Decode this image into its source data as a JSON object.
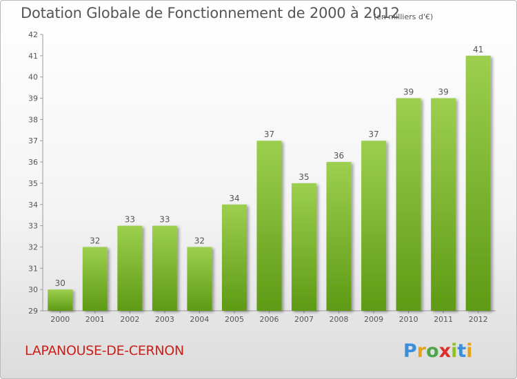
{
  "title": "Dotation Globale de Fonctionnement de 2000 à 2012",
  "unit": "(en milliers d'€)",
  "commune": "LAPANOUSE-DE-CERNON",
  "logo_text": "Proxiti",
  "colors": {
    "bar_top": "#9ccf4e",
    "bar_bottom": "#5e9a15",
    "commune": "#c9201a",
    "text": "#555555"
  },
  "chart_data": {
    "type": "bar",
    "title": "Dotation Globale de Fonctionnement de 2000 à 2012",
    "xlabel": "",
    "ylabel": "",
    "categories": [
      "2000",
      "2001",
      "2002",
      "2003",
      "2004",
      "2005",
      "2006",
      "2007",
      "2008",
      "2009",
      "2010",
      "2011",
      "2012"
    ],
    "values": [
      30,
      32,
      33,
      33,
      32,
      34,
      37,
      35,
      36,
      37,
      39,
      39,
      41
    ],
    "data_labels": [
      "30",
      "32",
      "33",
      "33",
      "32",
      "34",
      "37",
      "35",
      "36",
      "37",
      "39",
      "39",
      "41"
    ],
    "ylim": [
      29,
      42
    ],
    "yticks": [
      29,
      30,
      31,
      32,
      33,
      34,
      35,
      36,
      37,
      38,
      39,
      40,
      41,
      42
    ],
    "grid": false,
    "legend": "none"
  }
}
